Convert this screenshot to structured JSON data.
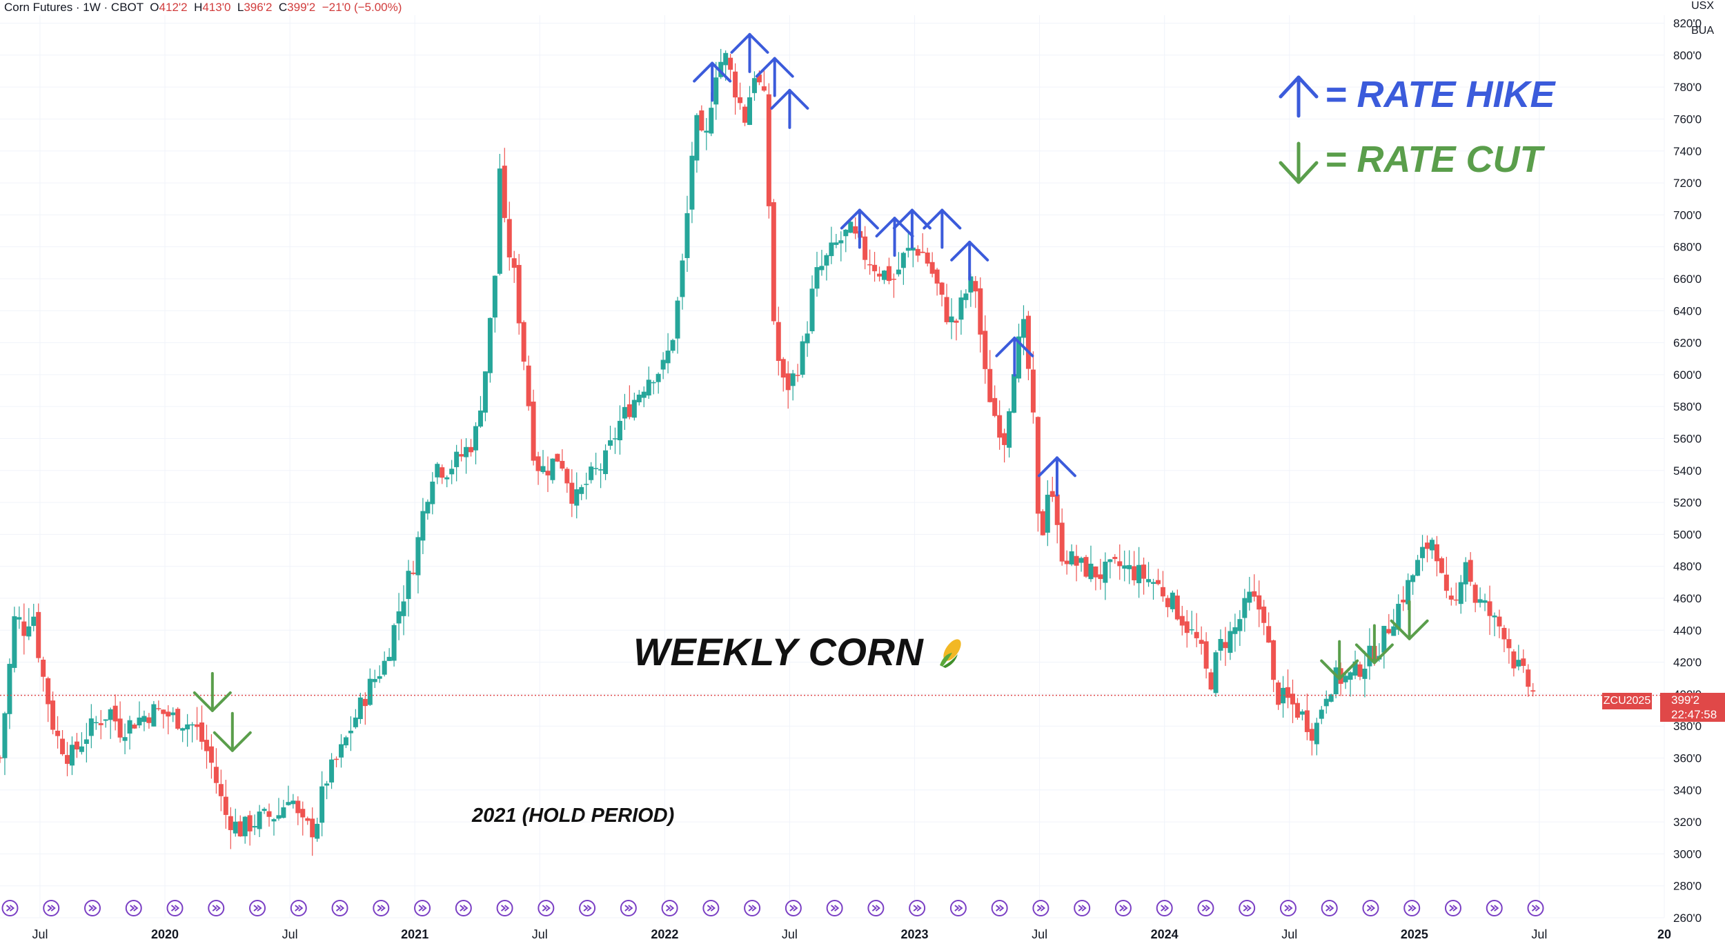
{
  "header": {
    "symbol": "Corn Futures · 1W · CBOT",
    "o_label": "O",
    "o_value": "412'2",
    "h_label": "H",
    "h_value": "413'0",
    "l_label": "L",
    "l_value": "396'2",
    "c_label": "C",
    "c_value": "399'2",
    "change": "−21'0 (−5.00%)"
  },
  "axis_corner": {
    "currency": "USX",
    "unit": "BUA"
  },
  "annotations": {
    "title": "WEEKLY CORN",
    "title_icon": "corn-emoji-icon",
    "hold_period": "2021 (HOLD PERIOD)",
    "legend_hike": "= RATE HIKE",
    "legend_cut": "= RATE CUT"
  },
  "price_tag": {
    "symbol": "ZCU2025",
    "price": "399'2",
    "countdown": "22:47:58"
  },
  "colors": {
    "up": "#26a69a",
    "down": "#ef5350",
    "hike": "#3b5bdb",
    "cut": "#5a9e4b",
    "marker": "#7a3fc4"
  },
  "chart_data": {
    "type": "candlestick",
    "title": "WEEKLY CORN",
    "ylim": [
      260,
      825
    ],
    "y_ticks": [
      "260'0",
      "280'0",
      "300'0",
      "320'0",
      "340'0",
      "360'0",
      "380'0",
      "400'0",
      "420'0",
      "440'0",
      "460'0",
      "480'0",
      "500'0",
      "520'0",
      "540'0",
      "560'0",
      "580'0",
      "600'0",
      "620'0",
      "640'0",
      "660'0",
      "680'0",
      "700'0",
      "720'0",
      "740'0",
      "760'0",
      "780'0",
      "800'0",
      "820'0"
    ],
    "x_ticks": [
      {
        "t": 2019.5,
        "label": "Jul"
      },
      {
        "t": 2020.0,
        "label": "2020"
      },
      {
        "t": 2020.5,
        "label": "Jul"
      },
      {
        "t": 2021.0,
        "label": "2021"
      },
      {
        "t": 2021.5,
        "label": "Jul"
      },
      {
        "t": 2022.0,
        "label": "2022"
      },
      {
        "t": 2022.5,
        "label": "Jul"
      },
      {
        "t": 2023.0,
        "label": "2023"
      },
      {
        "t": 2023.5,
        "label": "Jul"
      },
      {
        "t": 2024.0,
        "label": "2024"
      },
      {
        "t": 2024.5,
        "label": "Jul"
      },
      {
        "t": 2025.0,
        "label": "2025"
      },
      {
        "t": 2025.5,
        "label": "Jul"
      },
      {
        "t": 2026.0,
        "label": "20"
      }
    ],
    "xlim": [
      2019.34,
      2026.0
    ],
    "close_series": [
      [
        2019.34,
        360
      ],
      [
        2019.4,
        450
      ],
      [
        2019.44,
        440
      ],
      [
        2019.47,
        455
      ],
      [
        2019.5,
        420
      ],
      [
        2019.56,
        375
      ],
      [
        2019.62,
        360
      ],
      [
        2019.7,
        378
      ],
      [
        2019.78,
        390
      ],
      [
        2019.82,
        378
      ],
      [
        2019.9,
        385
      ],
      [
        2019.96,
        390
      ],
      [
        2020.04,
        385
      ],
      [
        2020.12,
        380
      ],
      [
        2020.18,
        360
      ],
      [
        2020.24,
        325
      ],
      [
        2020.3,
        315
      ],
      [
        2020.38,
        322
      ],
      [
        2020.46,
        325
      ],
      [
        2020.5,
        340
      ],
      [
        2020.54,
        318
      ],
      [
        2020.6,
        315
      ],
      [
        2020.64,
        345
      ],
      [
        2020.7,
        362
      ],
      [
        2020.76,
        385
      ],
      [
        2020.82,
        405
      ],
      [
        2020.88,
        420
      ],
      [
        2020.94,
        455
      ],
      [
        2021.0,
        485
      ],
      [
        2021.04,
        520
      ],
      [
        2021.08,
        545
      ],
      [
        2021.12,
        540
      ],
      [
        2021.18,
        548
      ],
      [
        2021.24,
        560
      ],
      [
        2021.28,
        600
      ],
      [
        2021.32,
        660
      ],
      [
        2021.34,
        730
      ],
      [
        2021.36,
        690
      ],
      [
        2021.4,
        660
      ],
      [
        2021.44,
        605
      ],
      [
        2021.48,
        545
      ],
      [
        2021.52,
        540
      ],
      [
        2021.58,
        550
      ],
      [
        2021.64,
        520
      ],
      [
        2021.7,
        535
      ],
      [
        2021.76,
        545
      ],
      [
        2021.82,
        570
      ],
      [
        2021.88,
        585
      ],
      [
        2021.94,
        600
      ],
      [
        2022.0,
        605
      ],
      [
        2022.04,
        630
      ],
      [
        2022.08,
        680
      ],
      [
        2022.12,
        760
      ],
      [
        2022.16,
        740
      ],
      [
        2022.2,
        790
      ],
      [
        2022.24,
        800
      ],
      [
        2022.28,
        780
      ],
      [
        2022.32,
        760
      ],
      [
        2022.36,
        790
      ],
      [
        2022.4,
        770
      ],
      [
        2022.44,
        620
      ],
      [
        2022.48,
        590
      ],
      [
        2022.52,
        600
      ],
      [
        2022.56,
        620
      ],
      [
        2022.6,
        660
      ],
      [
        2022.64,
        670
      ],
      [
        2022.68,
        680
      ],
      [
        2022.74,
        690
      ],
      [
        2022.8,
        675
      ],
      [
        2022.86,
        665
      ],
      [
        2022.92,
        660
      ],
      [
        2022.96,
        675
      ],
      [
        2023.0,
        680
      ],
      [
        2023.04,
        675
      ],
      [
        2023.08,
        660
      ],
      [
        2023.12,
        640
      ],
      [
        2023.16,
        630
      ],
      [
        2023.2,
        650
      ],
      [
        2023.24,
        660
      ],
      [
        2023.28,
        600
      ],
      [
        2023.32,
        575
      ],
      [
        2023.36,
        560
      ],
      [
        2023.4,
        610
      ],
      [
        2023.44,
        630
      ],
      [
        2023.48,
        560
      ],
      [
        2023.5,
        485
      ],
      [
        2023.54,
        540
      ],
      [
        2023.58,
        490
      ],
      [
        2023.66,
        480
      ],
      [
        2023.74,
        475
      ],
      [
        2023.82,
        480
      ],
      [
        2023.9,
        475
      ],
      [
        2023.96,
        470
      ],
      [
        2024.02,
        460
      ],
      [
        2024.08,
        445
      ],
      [
        2024.14,
        430
      ],
      [
        2024.18,
        405
      ],
      [
        2024.22,
        430
      ],
      [
        2024.28,
        440
      ],
      [
        2024.34,
        460
      ],
      [
        2024.4,
        450
      ],
      [
        2024.44,
        400
      ],
      [
        2024.5,
        395
      ],
      [
        2024.56,
        385
      ],
      [
        2024.6,
        375
      ],
      [
        2024.64,
        400
      ],
      [
        2024.68,
        410
      ],
      [
        2024.74,
        410
      ],
      [
        2024.8,
        420
      ],
      [
        2024.86,
        430
      ],
      [
        2024.92,
        450
      ],
      [
        2024.98,
        470
      ],
      [
        2025.04,
        490
      ],
      [
        2025.08,
        500
      ],
      [
        2025.12,
        460
      ],
      [
        2025.16,
        450
      ],
      [
        2025.2,
        490
      ],
      [
        2025.24,
        460
      ],
      [
        2025.28,
        455
      ],
      [
        2025.32,
        445
      ],
      [
        2025.36,
        440
      ],
      [
        2025.4,
        420
      ],
      [
        2025.44,
        410
      ],
      [
        2025.48,
        399
      ]
    ],
    "rate_hikes": [
      {
        "t": 2022.19,
        "y": 782
      },
      {
        "t": 2022.34,
        "y": 800
      },
      {
        "t": 2022.44,
        "y": 785
      },
      {
        "t": 2022.5,
        "y": 765
      },
      {
        "t": 2022.78,
        "y": 690
      },
      {
        "t": 2022.92,
        "y": 685
      },
      {
        "t": 2022.99,
        "y": 690
      },
      {
        "t": 2023.11,
        "y": 690
      },
      {
        "t": 2023.22,
        "y": 670
      },
      {
        "t": 2023.4,
        "y": 610
      },
      {
        "t": 2023.57,
        "y": 535
      }
    ],
    "rate_cuts": [
      {
        "t": 2020.19,
        "y": 400
      },
      {
        "t": 2020.27,
        "y": 375
      },
      {
        "t": 2024.7,
        "y": 420
      },
      {
        "t": 2024.84,
        "y": 430
      },
      {
        "t": 2024.98,
        "y": 445
      }
    ],
    "current_price_line": 399.25
  }
}
